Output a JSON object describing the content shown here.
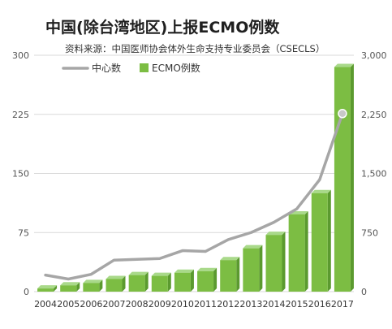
{
  "chart_data": {
    "type": "bar",
    "title": "中国(除台湾地区)上报ECMO例数",
    "source": "资料来源：中国医师协会体外生命支持专业委员会（CSECLS）",
    "categories": [
      "2004",
      "2005",
      "2006",
      "2007",
      "2008",
      "2009",
      "2010",
      "2011",
      "2012",
      "2013",
      "2014",
      "2015",
      "2016",
      "2017"
    ],
    "series": [
      {
        "name": "中心数",
        "kind": "line",
        "axis": "left",
        "color": "#a6a6a6",
        "values": [
          21,
          16,
          22,
          40,
          41,
          42,
          52,
          51,
          66,
          75,
          88,
          105,
          142,
          226
        ]
      },
      {
        "name": "ECMO例数",
        "kind": "bar",
        "axis": "right",
        "color": "#7cbd43",
        "values": [
          40,
          80,
          110,
          160,
          210,
          200,
          240,
          260,
          400,
          550,
          720,
          980,
          1250,
          2850
        ]
      }
    ],
    "y_left": {
      "ticks": [
        "0",
        "75",
        "150",
        "225",
        "300"
      ],
      "range": [
        0,
        300
      ]
    },
    "y_right": {
      "ticks": [
        "0",
        "750",
        "1,500",
        "2,250",
        "3,000"
      ],
      "range": [
        0,
        3000
      ]
    },
    "highlight_point": {
      "series": "中心数",
      "category": "2017"
    },
    "grid": true,
    "legend_position": "top-left",
    "colors": {
      "bar": "#7cbd43",
      "bar_top": "#a9d98a",
      "bar_side": "#5b9a2f",
      "line": "#a6a6a6",
      "grid": "#d9d9d9",
      "marker": "#c8c8c8"
    }
  }
}
